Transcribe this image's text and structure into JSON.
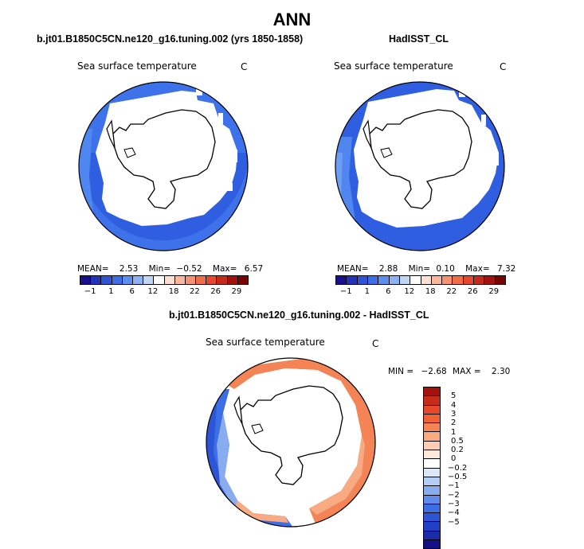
{
  "title": "ANN",
  "panels": [
    {
      "id": "model",
      "title": "b.jt01.B1850C5CN.ne120_g16.tuning.002 (yrs 1850-1858)",
      "field": "Sea surface temperature",
      "units": "C",
      "stats": {
        "mean_label": "MEAN=",
        "mean": "2.53",
        "min_label": "Min=",
        "min": "−0.52",
        "max_label": "Max=",
        "max": "6.57"
      }
    },
    {
      "id": "obs",
      "title": "HadISST_CL",
      "field": "Sea surface temperature",
      "units": "C",
      "stats": {
        "mean_label": "MEAN=",
        "mean": "2.88",
        "min_label": "Min=",
        "min": "0.10",
        "max_label": "Max=",
        "max": "7.32"
      }
    }
  ],
  "abs_colorbar": {
    "colors": [
      "#1a0f8c",
      "#2233b8",
      "#2d55d6",
      "#3c6ee6",
      "#5b8fef",
      "#8db3f2",
      "#c0d6f5",
      "#ffffff",
      "#fde0d0",
      "#fbb79c",
      "#f7926f",
      "#f16d44",
      "#e5482a",
      "#c72a18",
      "#a3120d",
      "#790404"
    ],
    "tick_labels": [
      "−1",
      "1",
      "6",
      "12",
      "18",
      "22",
      "26",
      "29"
    ]
  },
  "diff_panel": {
    "title": "b.jt01.B1850C5CN.ne120_g16.tuning.002 - HadISST_CL",
    "field": "Sea surface temperature",
    "units": "C",
    "stats": {
      "min_label": "MIN =",
      "min": "−2.68",
      "max_label": "MAX =",
      "max": "2.30"
    }
  },
  "diff_colorbar": {
    "colors": [
      "#a3120d",
      "#c72a18",
      "#e5482a",
      "#f06234",
      "#f48456",
      "#f8aa83",
      "#fbcdb2",
      "#fde8da",
      "#ffffff",
      "#dbe6f7",
      "#b3ccf2",
      "#89acee",
      "#5f8bea",
      "#3c6ee6",
      "#2d55d6",
      "#2240c4",
      "#1a2aa8",
      "#140f86"
    ],
    "labels": [
      "5",
      "4",
      "3",
      "2",
      "1",
      "0.5",
      "0.2",
      "0",
      "−0.2",
      "−0.5",
      "−1",
      "−2",
      "−3",
      "−4",
      "−5"
    ]
  }
}
